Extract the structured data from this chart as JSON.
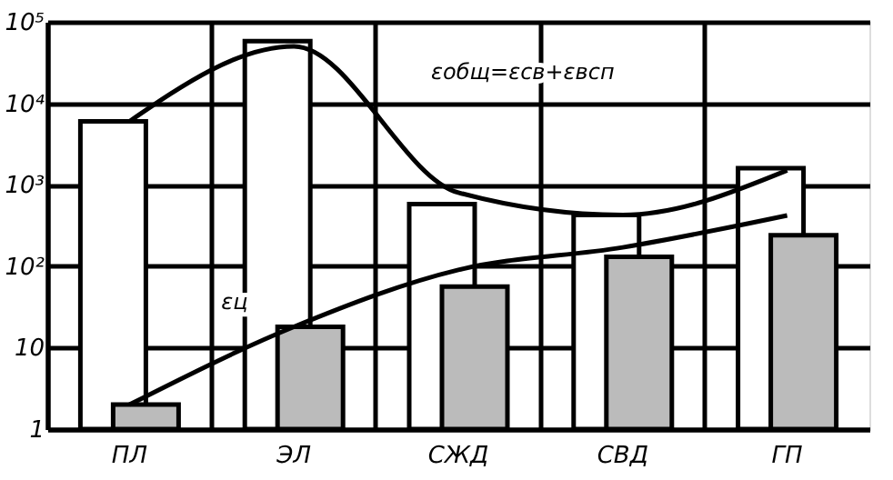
{
  "chart_data": {
    "type": "bar",
    "categories": [
      "ПЛ",
      "ЭЛ",
      "СЖД",
      "СВД",
      "ГП"
    ],
    "series": [
      {
        "color": "#ffffff",
        "values": [
          6000,
          58000,
          580,
          425,
          1600
        ]
      },
      {
        "color": "#bbbbbb",
        "values": [
          2,
          18,
          56,
          130,
          240
        ]
      },
      {
        "type": "line",
        "name": "εобщ=εсв+εвсп",
        "color": "#000000",
        "values": [
          6000,
          50000,
          800,
          425,
          1500
        ]
      },
      {
        "type": "line",
        "name": "εц",
        "color": "#000000",
        "values": [
          2,
          18,
          90,
          170,
          420
        ]
      }
    ],
    "log": true,
    "ylim": [
      1,
      100000
    ],
    "yticks": [
      1,
      10,
      {
        "value": 100,
        "label": "10²"
      },
      {
        "value": 1000,
        "label": "10³"
      },
      {
        "value": 10000,
        "label": "10⁴"
      },
      {
        "value": 100000,
        "label": "10⁵"
      }
    ],
    "grid": true,
    "legend": false,
    "marker": "none",
    "line_style": "solid"
  }
}
